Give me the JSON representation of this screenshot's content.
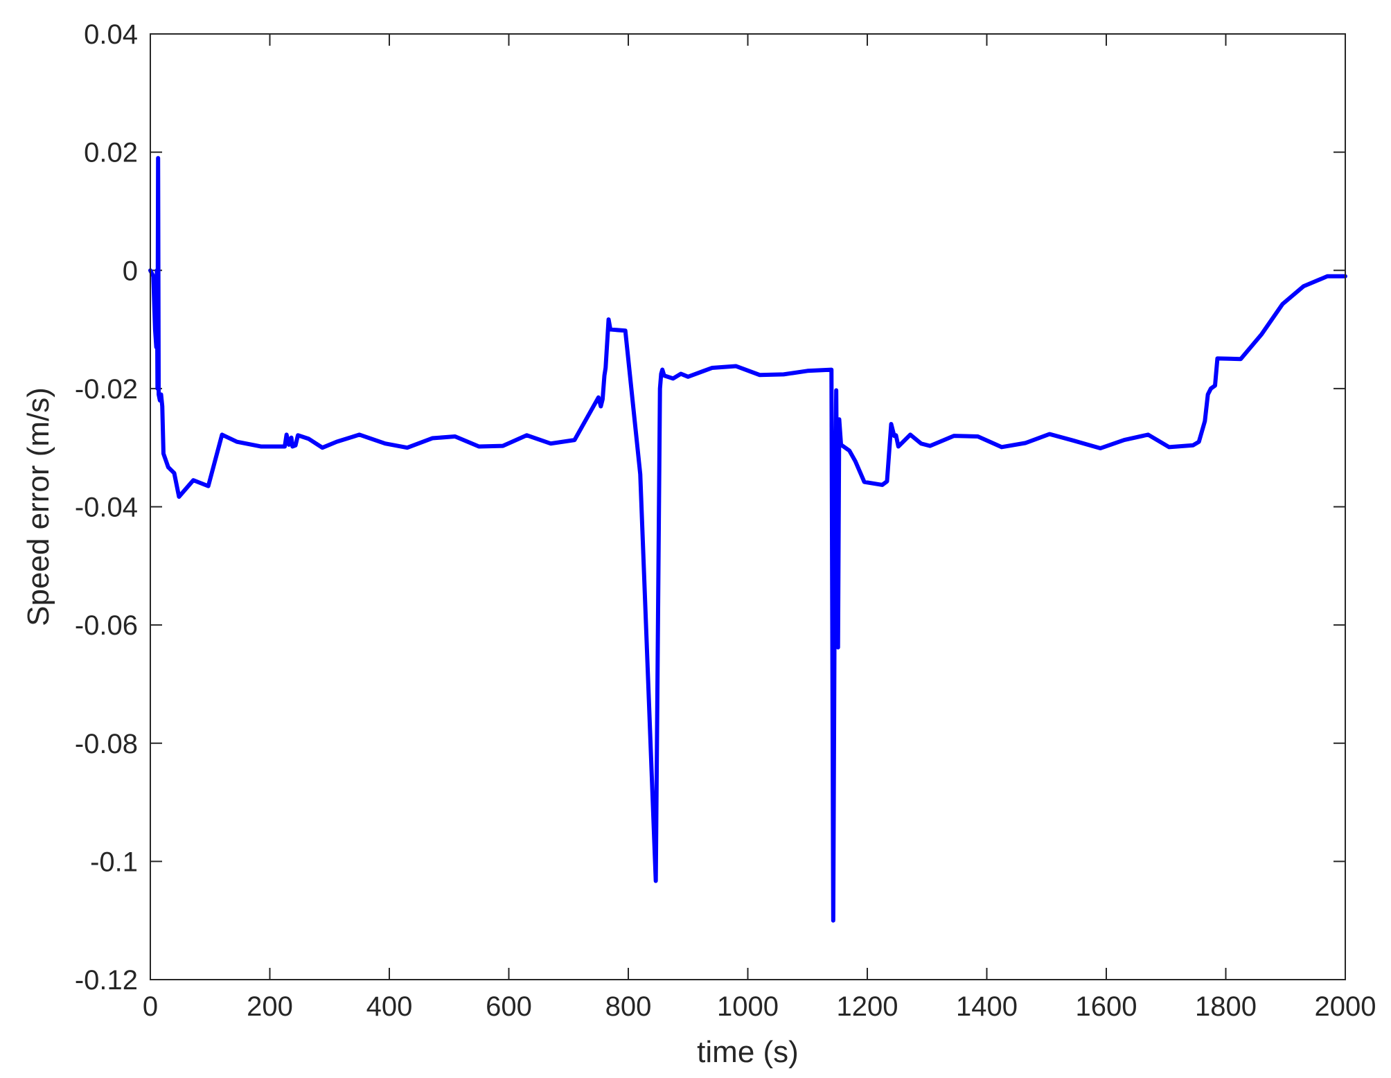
{
  "chart_data": {
    "type": "line",
    "title": "",
    "xlabel": "time (s)",
    "ylabel": "Speed error (m/s)",
    "xlim": [
      0,
      2000
    ],
    "ylim": [
      -0.12,
      0.04
    ],
    "xticks": [
      0,
      200,
      400,
      600,
      800,
      1000,
      1200,
      1400,
      1600,
      1800,
      2000
    ],
    "yticks": [
      -0.12,
      -0.1,
      -0.08,
      -0.06,
      -0.04,
      -0.02,
      0,
      0.02,
      0.04
    ],
    "xtick_labels": [
      "0",
      "200",
      "400",
      "600",
      "800",
      "1000",
      "1200",
      "1400",
      "1600",
      "1800",
      "2000"
    ],
    "ytick_labels": [
      "-0.12",
      "-0.1",
      "-0.08",
      "-0.06",
      "-0.04",
      "-0.02",
      "0",
      "0.02",
      "0.04"
    ],
    "grid": false,
    "box": true,
    "colors": {
      "line": "#0000ff",
      "axes": "#262626",
      "background": "#ffffff"
    },
    "series": [
      {
        "color": "#0000ff",
        "points": [
          [
            0,
            0
          ],
          [
            5,
            -0.001
          ],
          [
            8,
            -0.01
          ],
          [
            10,
            -0.013
          ],
          [
            11,
            0
          ],
          [
            12,
            -0.02
          ],
          [
            13,
            0.019
          ],
          [
            14,
            -0.021
          ],
          [
            16,
            -0.022
          ],
          [
            18,
            -0.021
          ],
          [
            20,
            -0.023
          ],
          [
            22,
            -0.031
          ],
          [
            30,
            -0.0333
          ],
          [
            40,
            -0.0343
          ],
          [
            48,
            -0.0383
          ],
          [
            72,
            -0.0355
          ],
          [
            97,
            -0.0365
          ],
          [
            120,
            -0.0278
          ],
          [
            145,
            -0.029
          ],
          [
            185,
            -0.0298
          ],
          [
            225,
            -0.0298
          ],
          [
            228,
            -0.0278
          ],
          [
            232,
            -0.0295
          ],
          [
            236,
            -0.0283
          ],
          [
            238,
            -0.0298
          ],
          [
            243,
            -0.0296
          ],
          [
            247,
            -0.0279
          ],
          [
            265,
            -0.0285
          ],
          [
            288,
            -0.03
          ],
          [
            312,
            -0.029
          ],
          [
            350,
            -0.0278
          ],
          [
            393,
            -0.0293
          ],
          [
            430,
            -0.03
          ],
          [
            472,
            -0.0284
          ],
          [
            510,
            -0.0281
          ],
          [
            550,
            -0.0298
          ],
          [
            590,
            -0.0297
          ],
          [
            630,
            -0.0279
          ],
          [
            670,
            -0.0293
          ],
          [
            710,
            -0.0287
          ],
          [
            750,
            -0.0215
          ],
          [
            754,
            -0.023
          ],
          [
            757,
            -0.0218
          ],
          [
            760,
            -0.0178
          ],
          [
            762,
            -0.0165
          ],
          [
            767,
            -0.0083
          ],
          [
            770,
            -0.01
          ],
          [
            795,
            -0.0102
          ],
          [
            820,
            -0.0345
          ],
          [
            846,
            -0.1033
          ],
          [
            853,
            -0.02
          ],
          [
            855,
            -0.0175
          ],
          [
            857,
            -0.0168
          ],
          [
            860,
            -0.0178
          ],
          [
            875,
            -0.0183
          ],
          [
            888,
            -0.0175
          ],
          [
            900,
            -0.018
          ],
          [
            940,
            -0.0165
          ],
          [
            980,
            -0.0162
          ],
          [
            1020,
            -0.0177
          ],
          [
            1060,
            -0.0176
          ],
          [
            1100,
            -0.017
          ],
          [
            1140,
            -0.0168
          ],
          [
            1143,
            -0.11
          ],
          [
            1146,
            -0.04
          ],
          [
            1148,
            -0.0203
          ],
          [
            1151,
            -0.0638
          ],
          [
            1153,
            -0.0252
          ],
          [
            1156,
            -0.0295
          ],
          [
            1170,
            -0.0305
          ],
          [
            1180,
            -0.0323
          ],
          [
            1195,
            -0.0358
          ],
          [
            1225,
            -0.0363
          ],
          [
            1233,
            -0.0357
          ],
          [
            1240,
            -0.026
          ],
          [
            1245,
            -0.028
          ],
          [
            1248,
            -0.0279
          ],
          [
            1252,
            -0.0298
          ],
          [
            1272,
            -0.0278
          ],
          [
            1290,
            -0.0293
          ],
          [
            1305,
            -0.0297
          ],
          [
            1345,
            -0.028
          ],
          [
            1385,
            -0.0281
          ],
          [
            1425,
            -0.0299
          ],
          [
            1465,
            -0.0292
          ],
          [
            1505,
            -0.0277
          ],
          [
            1545,
            -0.0288
          ],
          [
            1590,
            -0.0301
          ],
          [
            1630,
            -0.0287
          ],
          [
            1670,
            -0.0278
          ],
          [
            1705,
            -0.0299
          ],
          [
            1745,
            -0.0296
          ],
          [
            1755,
            -0.029
          ],
          [
            1765,
            -0.0255
          ],
          [
            1770,
            -0.021
          ],
          [
            1775,
            -0.02
          ],
          [
            1782,
            -0.0195
          ],
          [
            1786,
            -0.0149
          ],
          [
            1825,
            -0.015
          ],
          [
            1860,
            -0.0108
          ],
          [
            1895,
            -0.0057
          ],
          [
            1930,
            -0.0027
          ],
          [
            1970,
            -0.001
          ],
          [
            2000,
            -0.001
          ]
        ]
      }
    ]
  }
}
